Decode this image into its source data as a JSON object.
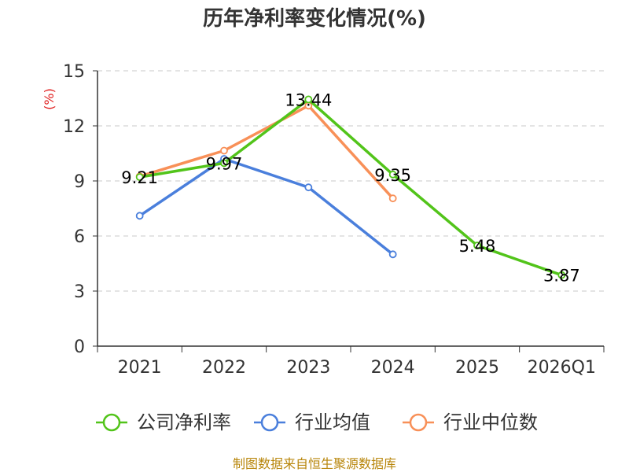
{
  "chart_data": {
    "type": "line",
    "title": "历年净利率变化情况(%)",
    "ylabel": "(%)",
    "xlabel": "",
    "categories": [
      "2021",
      "2022",
      "2023",
      "2024",
      "2025",
      "2026Q1"
    ],
    "ylim": [
      0,
      15
    ],
    "yticks": [
      0,
      3,
      6,
      9,
      12,
      15
    ],
    "grid": "horizontal-dashed",
    "legend_position": "bottom",
    "series": [
      {
        "name": "公司净利率",
        "color": "#52c41a",
        "values": [
          9.21,
          9.97,
          13.44,
          9.35,
          5.48,
          3.87
        ],
        "labels": [
          "9.21",
          "9.97",
          "13.44",
          "9.35",
          "5.48",
          "3.87"
        ],
        "show_labels": true
      },
      {
        "name": "行业均值",
        "color": "#4a7fdc",
        "values": [
          7.1,
          10.2,
          8.65,
          5.0,
          null,
          null
        ],
        "show_labels": false
      },
      {
        "name": "行业中位数",
        "color": "#f89058",
        "values": [
          9.25,
          10.65,
          13.1,
          8.05,
          null,
          null
        ],
        "show_labels": false
      }
    ]
  },
  "source_text": "制图数据来自恒生聚源数据库"
}
